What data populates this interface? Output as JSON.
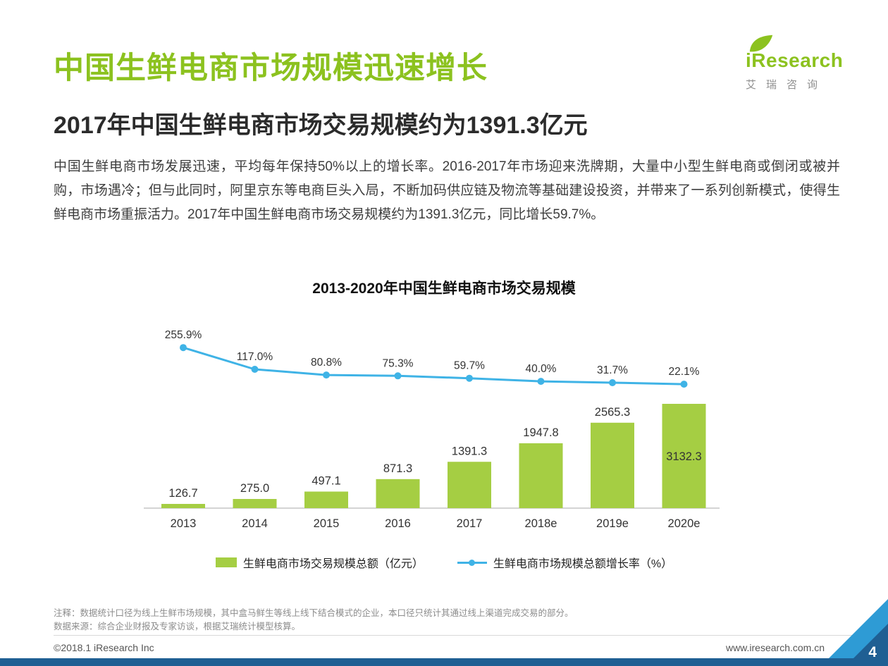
{
  "colors": {
    "accent_green": "#8CC21F",
    "bar_green": "#A5CE43",
    "line_blue": "#3FB3E6",
    "footer_blue_dark": "#1F5F93",
    "footer_blue_light": "#2E9BD5"
  },
  "header": {
    "title": "中国生鲜电商市场规模迅速增长",
    "subtitle": "2017年中国生鲜电商市场交易规模约为1391.3亿元",
    "logo": {
      "brand": "iResearch",
      "brand_cn": "艾瑞咨询",
      "leaf_icon": "leaf-icon"
    }
  },
  "body": {
    "paragraph": "中国生鲜电商市场发展迅速，平均每年保持50%以上的增长率。2016-2017年市场迎来洗牌期，大量中小型生鲜电商或倒闭或被并购，市场遇冷；但与此同时，阿里京东等电商巨头入局，不断加码供应链及物流等基础建设投资，并带来了一系列创新模式，使得生鲜电商市场重振活力。2017年中国生鲜电商市场交易规模约为1391.3亿元，同比增长59.7%。"
  },
  "chart_data": {
    "type": "bar",
    "subtype": "combo-bar-line",
    "title": "2013-2020年中国生鲜电商市场交易规模",
    "categories": [
      "2013",
      "2014",
      "2015",
      "2016",
      "2017",
      "2018e",
      "2019e",
      "2020e"
    ],
    "series": [
      {
        "name": "生鲜电商市场交易规模总额（亿元）",
        "type": "bar",
        "color": "#A5CE43",
        "values": [
          126.7,
          275.0,
          497.1,
          871.3,
          1391.3,
          1947.8,
          2565.3,
          3132.3
        ]
      },
      {
        "name": "生鲜电商市场规模总额增长率（%）",
        "type": "line",
        "color": "#3FB3E6",
        "values": [
          255.9,
          117.0,
          80.8,
          75.3,
          59.7,
          40.0,
          31.7,
          22.1
        ],
        "label_suffix": "%"
      }
    ],
    "xlabel": "",
    "ylabel": "",
    "grid": false,
    "legend_position": "bottom",
    "data_labels": true
  },
  "notes": {
    "note1": "注释：数据统计口径为线上生鲜市场规模，其中盒马鲜生等线上线下结合模式的企业，本口径只统计其通过线上渠道完成交易的部分。",
    "note2": "数据来源：综合企业财报及专家访谈，根据艾瑞统计模型核算。"
  },
  "footer": {
    "copyright": "©2018.1 iResearch Inc",
    "website": "www.iresearch.com.cn",
    "page_number": "4"
  }
}
